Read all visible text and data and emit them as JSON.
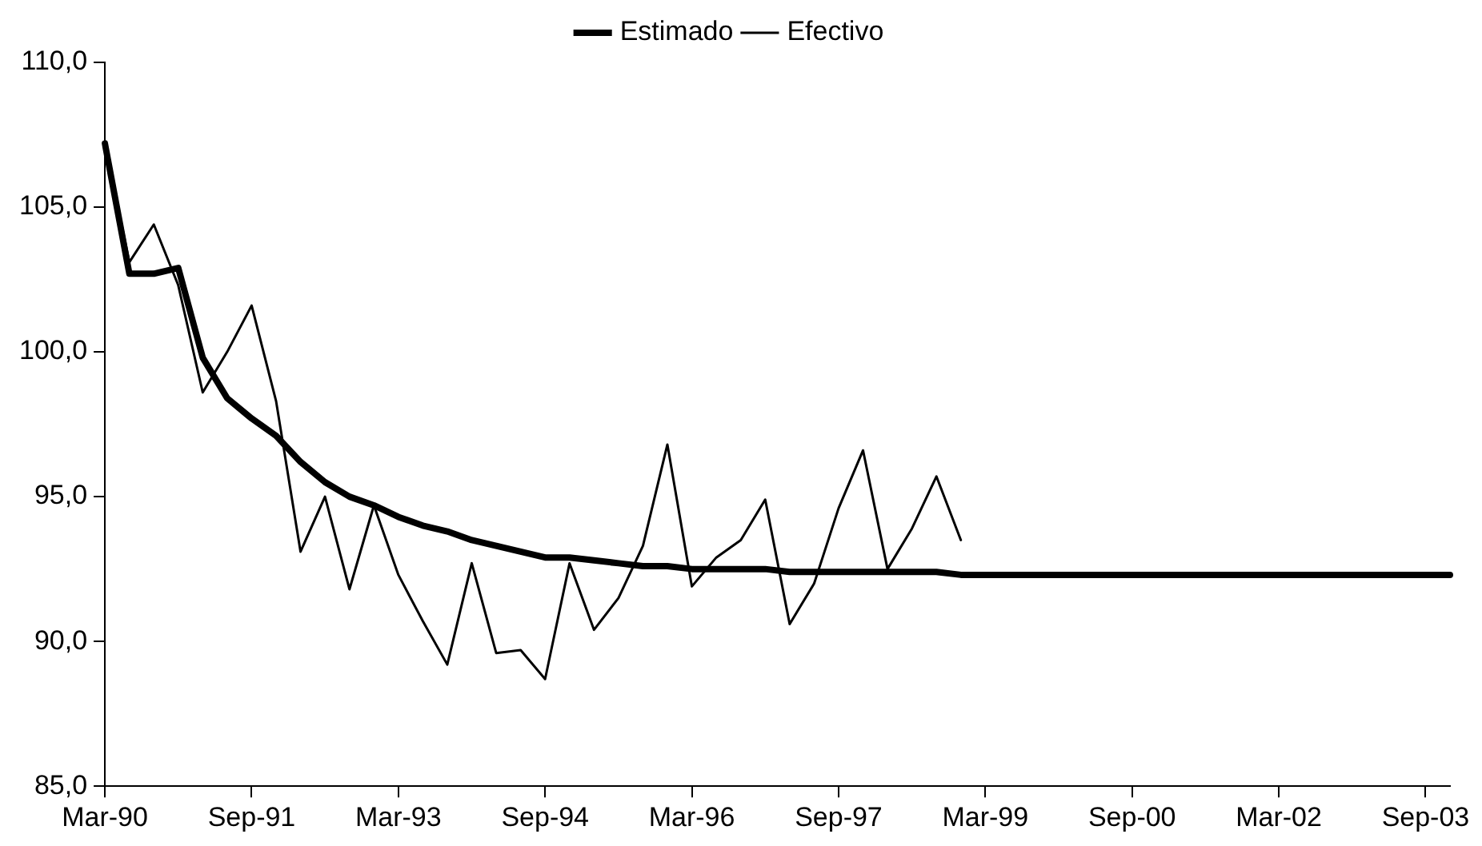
{
  "chart_data": {
    "type": "line",
    "categories": [
      "Mar-90",
      null,
      null,
      null,
      null,
      null,
      "Sep-91",
      null,
      null,
      null,
      null,
      null,
      "Mar-93",
      null,
      null,
      null,
      null,
      null,
      "Sep-94",
      null,
      null,
      null,
      null,
      null,
      "Mar-96",
      null,
      null,
      null,
      null,
      null,
      "Sep-97",
      null,
      null,
      null,
      null,
      null,
      "Mar-99",
      null,
      null,
      null,
      null,
      null,
      "Sep-00",
      null,
      null,
      null,
      null,
      null,
      "Mar-02",
      null,
      null,
      null,
      null,
      null,
      "Sep-03",
      null
    ],
    "series": [
      {
        "name": "Estimado",
        "color": "#000000",
        "values": [
          107.2,
          102.7,
          102.7,
          102.9,
          99.8,
          98.4,
          97.7,
          97.1,
          96.2,
          95.5,
          95.0,
          94.7,
          94.3,
          94.0,
          93.8,
          93.5,
          93.3,
          93.1,
          92.9,
          92.9,
          92.8,
          92.7,
          92.6,
          92.6,
          92.5,
          92.5,
          92.5,
          92.5,
          92.4,
          92.4,
          92.4,
          92.4,
          92.4,
          92.4,
          92.4,
          92.3,
          92.3,
          92.3,
          92.3,
          92.3,
          92.3,
          92.3,
          92.3,
          92.3,
          92.3,
          92.3,
          92.3,
          92.3,
          92.3,
          92.3,
          92.3,
          92.3,
          92.3,
          92.3,
          92.3,
          92.3
        ]
      },
      {
        "name": "Efectivo",
        "color": "#000000",
        "values": [
          107.2,
          103.1,
          104.4,
          102.3,
          98.6,
          100.0,
          101.6,
          98.3,
          93.1,
          95.0,
          91.8,
          94.7,
          92.3,
          90.7,
          89.2,
          92.7,
          89.6,
          89.7,
          88.7,
          92.7,
          90.4,
          91.5,
          93.3,
          96.8,
          91.9,
          92.9,
          93.5,
          94.9,
          90.6,
          92.0,
          94.6,
          96.6,
          92.5,
          93.9,
          95.7,
          93.5,
          null,
          null,
          null,
          null,
          null,
          null,
          null,
          null,
          null,
          null,
          null,
          null,
          null,
          null,
          null,
          null,
          null,
          null,
          null,
          null
        ]
      }
    ],
    "ylim": [
      85,
      110
    ],
    "yticks": [
      {
        "value": 85,
        "label": "85,0"
      },
      {
        "value": 90,
        "label": "90,0"
      },
      {
        "value": 95,
        "label": "95,0"
      },
      {
        "value": 100,
        "label": "100,0"
      },
      {
        "value": 105,
        "label": "105,0"
      },
      {
        "value": 110,
        "label": "110,0"
      }
    ],
    "grid": false,
    "legend": "top",
    "marker": "none",
    "line_style": "solid"
  }
}
